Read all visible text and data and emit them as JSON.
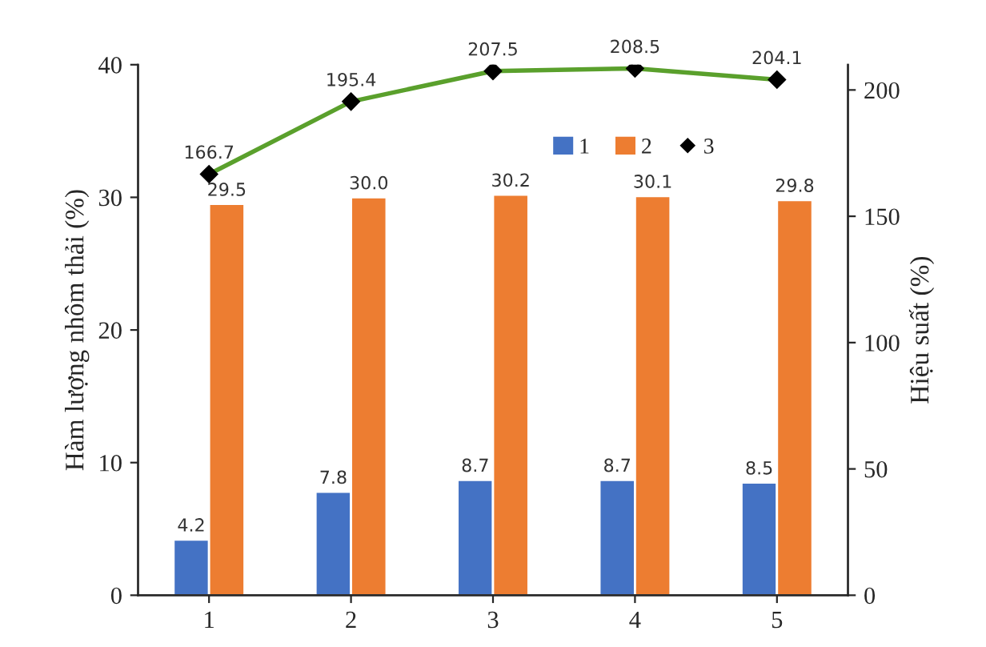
{
  "chart_data": {
    "type": "bar",
    "categories": [
      "1",
      "2",
      "3",
      "4",
      "5"
    ],
    "ylabel": "Hàm lượng nhôm thải (%)",
    "y2label": "Hiệu suất (%)",
    "series": [
      {
        "name": "1",
        "color": "#4472c4",
        "values": [
          4.2,
          7.8,
          8.7,
          8.7,
          8.5
        ]
      },
      {
        "name": "2",
        "color": "#ed7d31",
        "values": [
          29.5,
          30.0,
          30.2,
          30.1,
          29.8
        ],
        "value_labels": [
          "29.5",
          "30.0",
          "30.2",
          "30.1",
          "29.8"
        ]
      },
      {
        "name": "3",
        "type": "line",
        "axis": "y2",
        "color": "#5aa02c",
        "marker": "diamond",
        "values": [
          166.7,
          195.4,
          207.5,
          208.5,
          204.1
        ]
      }
    ],
    "ylim": [
      0,
      40
    ],
    "yticks": [
      0,
      10,
      20,
      30,
      40
    ],
    "y2lim": [
      0,
      210
    ],
    "y2ticks": [
      0,
      50,
      100,
      150,
      200
    ],
    "data_labels": true,
    "legend": "top right",
    "grid": false
  }
}
